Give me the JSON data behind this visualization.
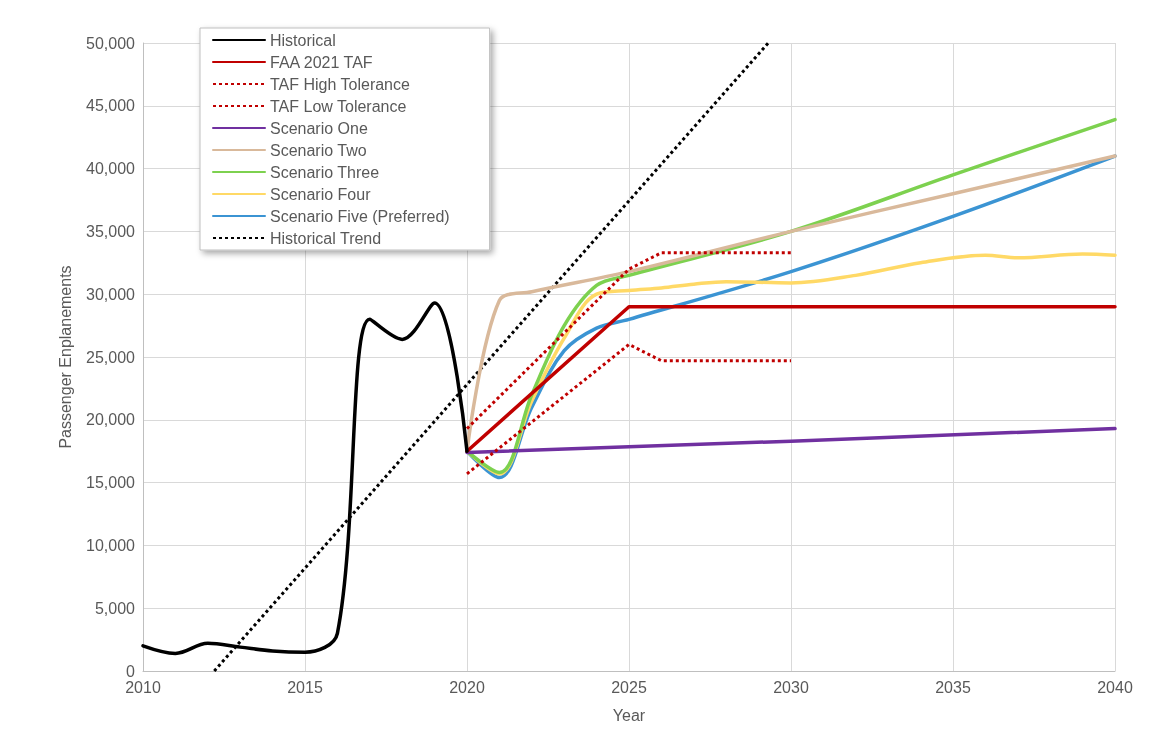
{
  "chart_data": {
    "type": "line",
    "xlabel": "Year",
    "ylabel": "Passenger Enplanements",
    "xlim": [
      2010,
      2040
    ],
    "xticks": [
      2010,
      2015,
      2020,
      2025,
      2030,
      2035,
      2040
    ],
    "ylim": [
      0,
      50000
    ],
    "yticks": [
      {
        "value": 0,
        "label": "0"
      },
      {
        "value": 5000,
        "label": "5,000"
      },
      {
        "value": 10000,
        "label": "10,000"
      },
      {
        "value": 15000,
        "label": "15,000"
      },
      {
        "value": 20000,
        "label": "20,000"
      },
      {
        "value": 25000,
        "label": "25,000"
      },
      {
        "value": 30000,
        "label": "30,000"
      },
      {
        "value": 35000,
        "label": "35,000"
      },
      {
        "value": 40000,
        "label": "40,000"
      },
      {
        "value": 45000,
        "label": "45,000"
      },
      {
        "value": 50000,
        "label": "50,000"
      }
    ],
    "grid": true,
    "legend": "top left",
    "marker": "none",
    "series": [
      {
        "name": "Historical",
        "color": "#000000",
        "line_style": "solid",
        "x": [
          2010,
          2011,
          2012,
          2013,
          2014,
          2015,
          2016,
          2017,
          2018,
          2019,
          2020
        ],
        "values": [
          2000,
          1400,
          2200,
          1900,
          1600,
          1500,
          3000,
          28000,
          26400,
          29300,
          17500
        ]
      },
      {
        "name": "FAA 2021 TAF",
        "color": "#c00000",
        "line_style": "solid",
        "x": [
          2020,
          2025,
          2040
        ],
        "values": [
          17500,
          29000,
          29000
        ]
      },
      {
        "name": "TAF High Tolerance",
        "color": "#c00000",
        "line_style": "dotted",
        "x": [
          2020,
          2025,
          2026,
          2030
        ],
        "values": [
          19300,
          32000,
          33300,
          33300
        ]
      },
      {
        "name": "TAF Low Tolerance",
        "color": "#c00000",
        "line_style": "dotted",
        "x": [
          2020,
          2025,
          2026,
          2030
        ],
        "values": [
          15700,
          26000,
          24700,
          24700
        ]
      },
      {
        "name": "Scenario One",
        "color": "#7030a0",
        "line_style": "solid",
        "x": [
          2020,
          2030,
          2040
        ],
        "values": [
          17400,
          18300,
          19300
        ]
      },
      {
        "name": "Scenario Two",
        "color": "#d9b99b",
        "line_style": "solid",
        "x": [
          2020,
          2021,
          2022,
          2025,
          2030,
          2035,
          2040
        ],
        "values": [
          17500,
          29500,
          30200,
          31800,
          35000,
          38000,
          41000
        ]
      },
      {
        "name": "Scenario Three",
        "color": "#7dd14f",
        "line_style": "solid",
        "x": [
          2020,
          2021,
          2022,
          2023,
          2024,
          2025,
          2030,
          2035,
          2040
        ],
        "values": [
          17500,
          15800,
          22000,
          27500,
          30700,
          31500,
          35000,
          39500,
          43900
        ]
      },
      {
        "name": "Scenario Four",
        "color": "#ffd966",
        "line_style": "solid",
        "x": [
          2020,
          2021,
          2022,
          2023,
          2024,
          2025,
          2026,
          2027,
          2028,
          2030,
          2032,
          2034,
          2036,
          2037,
          2039,
          2040
        ],
        "values": [
          17500,
          15700,
          21500,
          26500,
          30000,
          30300,
          30500,
          30800,
          31000,
          30900,
          31500,
          32500,
          33100,
          32900,
          33200,
          33100
        ]
      },
      {
        "name": "Scenario Five (Preferred)",
        "color": "#3b94d3",
        "line_style": "solid",
        "x": [
          2020,
          2021,
          2022,
          2023,
          2024,
          2025,
          2030,
          2035,
          2040
        ],
        "values": [
          17500,
          15400,
          21000,
          25500,
          27300,
          28000,
          31800,
          36200,
          41000
        ]
      },
      {
        "name": "Historical Trend",
        "color": "#000000",
        "line_style": "dotted",
        "x": [
          2012.2,
          2029.3
        ],
        "values": [
          0,
          50000
        ]
      }
    ]
  }
}
